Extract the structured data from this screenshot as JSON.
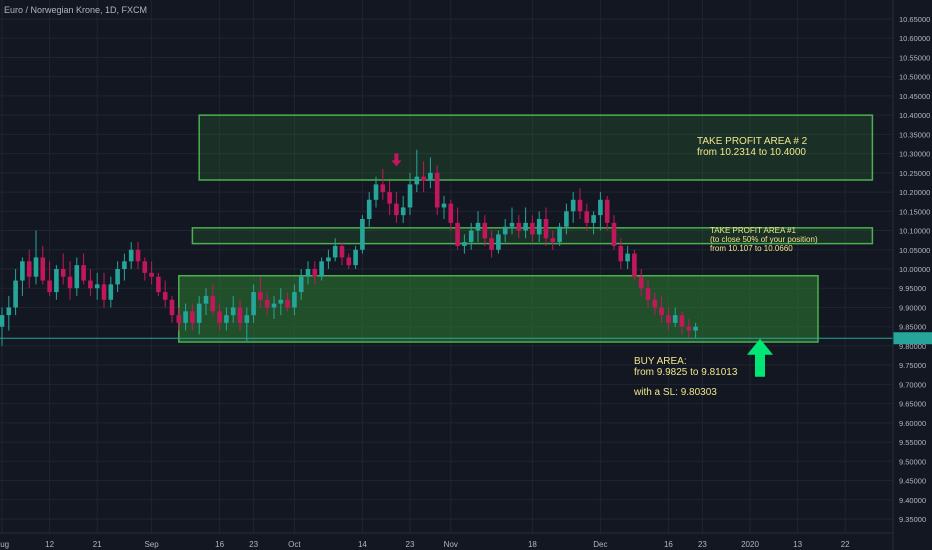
{
  "header": {
    "symbol_title": "Euro / Norwegian Krone, 1D, FXCM"
  },
  "annotations": {
    "tp2": {
      "line1": "TAKE PROFIT AREA # 2",
      "line2": "from 10.2314 to 10.4000"
    },
    "tp1": {
      "line1": "TAKE PROFIT AREA #1",
      "line2": "(to close 50% of your position)",
      "line3": "from 10.107 to 10.0660"
    },
    "buy": {
      "line1": "BUY AREA:",
      "line2": "from 9.9825 to 9.81013",
      "line3": "with a SL: 9.80303"
    }
  },
  "colors": {
    "background": "#131722",
    "up": "#26a69a",
    "down": "#c2185b",
    "zone_fill": "#2e7d32",
    "zone_border": "#4caf50",
    "annotation_text": "#f0e68c",
    "arrow_up": "#00e676",
    "arrow_down": "#c2185b",
    "price_line": "#26a69a"
  },
  "chart_data": {
    "type": "candlestick",
    "title": "Euro / Norwegian Krone, 1D, FXCM",
    "y_axis": {
      "min": 9.3,
      "max": 10.67,
      "ticks": [
        10.65,
        10.6,
        10.55,
        10.5,
        10.45,
        10.4,
        10.35,
        10.3,
        10.25,
        10.2,
        10.15,
        10.1,
        10.05,
        10.0,
        9.95,
        9.9,
        9.85,
        9.8,
        9.75,
        9.7,
        9.65,
        9.6,
        9.55,
        9.5,
        9.45,
        9.4,
        9.35
      ],
      "tick_labels": [
        "10.65000",
        "10.60000",
        "10.55000",
        "10.50000",
        "10.45000",
        "10.40000",
        "10.35000",
        "10.30000",
        "10.25000",
        "10.20000",
        "10.15000",
        "10.10000",
        "10.05000",
        "10.00000",
        "9.95000",
        "9.90000",
        "9.85000",
        "9.80000",
        "9.75000",
        "9.70000",
        "9.65000",
        "9.60000",
        "9.55000",
        "9.50000",
        "9.45000",
        "9.40000",
        "9.35000"
      ]
    },
    "x_axis": {
      "ticks": [
        {
          "label": "Aug",
          "index": 0
        },
        {
          "label": "12",
          "index": 7
        },
        {
          "label": "21",
          "index": 14
        },
        {
          "label": "Sep",
          "index": 22
        },
        {
          "label": "16",
          "index": 32
        },
        {
          "label": "23",
          "index": 37
        },
        {
          "label": "Oct",
          "index": 43
        },
        {
          "label": "14",
          "index": 53
        },
        {
          "label": "23",
          "index": 60
        },
        {
          "label": "Nov",
          "index": 66
        },
        {
          "label": "18",
          "index": 78
        },
        {
          "label": "Dec",
          "index": 88
        },
        {
          "label": "16",
          "index": 98
        },
        {
          "label": "23",
          "index": 103
        },
        {
          "label": "2020",
          "index": 110
        },
        {
          "label": "13",
          "index": 117
        },
        {
          "label": "22",
          "index": 124
        }
      ]
    },
    "last_price": 9.82,
    "zones": [
      {
        "name": "TAKE PROFIT AREA # 2",
        "from_index": 29,
        "to_index": 128,
        "low": 10.2314,
        "high": 10.4
      },
      {
        "name": "TAKE PROFIT AREA #1",
        "from_index": 28,
        "to_index": 128,
        "low": 10.066,
        "high": 10.107
      },
      {
        "name": "BUY AREA",
        "from_index": 26,
        "to_index": 120,
        "low": 9.81013,
        "high": 9.9825
      }
    ],
    "candles": [
      {
        "o": 9.85,
        "h": 9.9,
        "l": 9.8,
        "c": 9.88
      },
      {
        "o": 9.88,
        "h": 9.93,
        "l": 9.84,
        "c": 9.9
      },
      {
        "o": 9.9,
        "h": 10.0,
        "l": 9.88,
        "c": 9.97
      },
      {
        "o": 9.97,
        "h": 10.03,
        "l": 9.93,
        "c": 10.02
      },
      {
        "o": 10.02,
        "h": 10.05,
        "l": 9.95,
        "c": 9.98
      },
      {
        "o": 9.98,
        "h": 10.1,
        "l": 9.96,
        "c": 10.03
      },
      {
        "o": 10.03,
        "h": 10.06,
        "l": 9.96,
        "c": 9.97
      },
      {
        "o": 9.97,
        "h": 10.02,
        "l": 9.93,
        "c": 9.94
      },
      {
        "o": 9.94,
        "h": 10.01,
        "l": 9.92,
        "c": 10.0
      },
      {
        "o": 10.0,
        "h": 10.04,
        "l": 9.96,
        "c": 9.98
      },
      {
        "o": 9.98,
        "h": 10.02,
        "l": 9.92,
        "c": 9.95
      },
      {
        "o": 9.95,
        "h": 10.03,
        "l": 9.93,
        "c": 10.01
      },
      {
        "o": 10.01,
        "h": 10.04,
        "l": 9.96,
        "c": 9.97
      },
      {
        "o": 9.97,
        "h": 10.0,
        "l": 9.93,
        "c": 9.95
      },
      {
        "o": 9.95,
        "h": 9.99,
        "l": 9.92,
        "c": 9.96
      },
      {
        "o": 9.96,
        "h": 9.99,
        "l": 9.9,
        "c": 9.92
      },
      {
        "o": 9.92,
        "h": 9.98,
        "l": 9.9,
        "c": 9.96
      },
      {
        "o": 9.96,
        "h": 10.02,
        "l": 9.94,
        "c": 10.0
      },
      {
        "o": 10.0,
        "h": 10.04,
        "l": 9.97,
        "c": 10.02
      },
      {
        "o": 10.02,
        "h": 10.07,
        "l": 10.0,
        "c": 10.05
      },
      {
        "o": 10.05,
        "h": 10.07,
        "l": 10.0,
        "c": 10.02
      },
      {
        "o": 10.02,
        "h": 10.03,
        "l": 9.97,
        "c": 9.99
      },
      {
        "o": 9.99,
        "h": 10.02,
        "l": 9.96,
        "c": 9.98
      },
      {
        "o": 9.98,
        "h": 9.99,
        "l": 9.93,
        "c": 9.94
      },
      {
        "o": 9.94,
        "h": 9.97,
        "l": 9.9,
        "c": 9.92
      },
      {
        "o": 9.92,
        "h": 9.93,
        "l": 9.86,
        "c": 9.88
      },
      {
        "o": 9.88,
        "h": 9.9,
        "l": 9.84,
        "c": 9.86
      },
      {
        "o": 9.86,
        "h": 9.91,
        "l": 9.84,
        "c": 9.89
      },
      {
        "o": 9.89,
        "h": 9.91,
        "l": 9.84,
        "c": 9.86
      },
      {
        "o": 9.86,
        "h": 9.93,
        "l": 9.83,
        "c": 9.91
      },
      {
        "o": 9.91,
        "h": 9.95,
        "l": 9.88,
        "c": 9.93
      },
      {
        "o": 9.93,
        "h": 9.96,
        "l": 9.88,
        "c": 9.89
      },
      {
        "o": 9.89,
        "h": 9.91,
        "l": 9.84,
        "c": 9.86
      },
      {
        "o": 9.86,
        "h": 9.9,
        "l": 9.84,
        "c": 9.88
      },
      {
        "o": 9.88,
        "h": 9.93,
        "l": 9.86,
        "c": 9.9
      },
      {
        "o": 9.9,
        "h": 9.92,
        "l": 9.84,
        "c": 9.86
      },
      {
        "o": 9.86,
        "h": 9.9,
        "l": 9.81,
        "c": 9.88
      },
      {
        "o": 9.88,
        "h": 9.96,
        "l": 9.86,
        "c": 9.94
      },
      {
        "o": 9.94,
        "h": 9.98,
        "l": 9.9,
        "c": 9.92
      },
      {
        "o": 9.92,
        "h": 9.94,
        "l": 9.88,
        "c": 9.9
      },
      {
        "o": 9.9,
        "h": 9.93,
        "l": 9.87,
        "c": 9.91
      },
      {
        "o": 9.91,
        "h": 9.95,
        "l": 9.88,
        "c": 9.92
      },
      {
        "o": 9.92,
        "h": 9.94,
        "l": 9.89,
        "c": 9.9
      },
      {
        "o": 9.9,
        "h": 9.96,
        "l": 9.88,
        "c": 9.94
      },
      {
        "o": 9.94,
        "h": 10.0,
        "l": 9.92,
        "c": 9.98
      },
      {
        "o": 9.98,
        "h": 10.02,
        "l": 9.96,
        "c": 10.0
      },
      {
        "o": 10.0,
        "h": 10.02,
        "l": 9.96,
        "c": 9.98
      },
      {
        "o": 9.98,
        "h": 10.03,
        "l": 9.97,
        "c": 10.02
      },
      {
        "o": 10.02,
        "h": 10.05,
        "l": 10.0,
        "c": 10.03
      },
      {
        "o": 10.03,
        "h": 10.08,
        "l": 10.02,
        "c": 10.06
      },
      {
        "o": 10.06,
        "h": 10.07,
        "l": 10.01,
        "c": 10.03
      },
      {
        "o": 10.03,
        "h": 10.04,
        "l": 10.0,
        "c": 10.01
      },
      {
        "o": 10.01,
        "h": 10.06,
        "l": 10.0,
        "c": 10.05
      },
      {
        "o": 10.05,
        "h": 10.14,
        "l": 10.04,
        "c": 10.13
      },
      {
        "o": 10.13,
        "h": 10.2,
        "l": 10.11,
        "c": 10.18
      },
      {
        "o": 10.18,
        "h": 10.24,
        "l": 10.16,
        "c": 10.22
      },
      {
        "o": 10.22,
        "h": 10.26,
        "l": 10.18,
        "c": 10.2
      },
      {
        "o": 10.2,
        "h": 10.23,
        "l": 10.14,
        "c": 10.17
      },
      {
        "o": 10.17,
        "h": 10.2,
        "l": 10.12,
        "c": 10.14
      },
      {
        "o": 10.14,
        "h": 10.19,
        "l": 10.12,
        "c": 10.16
      },
      {
        "o": 10.16,
        "h": 10.25,
        "l": 10.14,
        "c": 10.22
      },
      {
        "o": 10.22,
        "h": 10.31,
        "l": 10.2,
        "c": 10.24
      },
      {
        "o": 10.24,
        "h": 10.28,
        "l": 10.2,
        "c": 10.23
      },
      {
        "o": 10.23,
        "h": 10.29,
        "l": 10.21,
        "c": 10.25
      },
      {
        "o": 10.25,
        "h": 10.27,
        "l": 10.14,
        "c": 10.16
      },
      {
        "o": 10.16,
        "h": 10.19,
        "l": 10.13,
        "c": 10.17
      },
      {
        "o": 10.17,
        "h": 10.18,
        "l": 10.1,
        "c": 10.12
      },
      {
        "o": 10.12,
        "h": 10.16,
        "l": 10.05,
        "c": 10.06
      },
      {
        "o": 10.06,
        "h": 10.09,
        "l": 10.04,
        "c": 10.07
      },
      {
        "o": 10.07,
        "h": 10.12,
        "l": 10.05,
        "c": 10.1
      },
      {
        "o": 10.1,
        "h": 10.15,
        "l": 10.07,
        "c": 10.12
      },
      {
        "o": 10.12,
        "h": 10.14,
        "l": 10.06,
        "c": 10.08
      },
      {
        "o": 10.08,
        "h": 10.1,
        "l": 10.03,
        "c": 10.05
      },
      {
        "o": 10.05,
        "h": 10.1,
        "l": 10.04,
        "c": 10.09
      },
      {
        "o": 10.09,
        "h": 10.13,
        "l": 10.07,
        "c": 10.11
      },
      {
        "o": 10.11,
        "h": 10.16,
        "l": 10.09,
        "c": 10.12
      },
      {
        "o": 10.12,
        "h": 10.14,
        "l": 10.08,
        "c": 10.1
      },
      {
        "o": 10.1,
        "h": 10.16,
        "l": 10.08,
        "c": 10.12
      },
      {
        "o": 10.12,
        "h": 10.14,
        "l": 10.07,
        "c": 10.09
      },
      {
        "o": 10.09,
        "h": 10.15,
        "l": 10.07,
        "c": 10.13
      },
      {
        "o": 10.13,
        "h": 10.16,
        "l": 10.06,
        "c": 10.08
      },
      {
        "o": 10.08,
        "h": 10.1,
        "l": 10.05,
        "c": 10.07
      },
      {
        "o": 10.07,
        "h": 10.12,
        "l": 10.06,
        "c": 10.11
      },
      {
        "o": 10.11,
        "h": 10.17,
        "l": 10.09,
        "c": 10.15
      },
      {
        "o": 10.15,
        "h": 10.2,
        "l": 10.12,
        "c": 10.18
      },
      {
        "o": 10.18,
        "h": 10.21,
        "l": 10.13,
        "c": 10.15
      },
      {
        "o": 10.15,
        "h": 10.17,
        "l": 10.1,
        "c": 10.12
      },
      {
        "o": 10.12,
        "h": 10.15,
        "l": 10.09,
        "c": 10.14
      },
      {
        "o": 10.14,
        "h": 10.2,
        "l": 10.1,
        "c": 10.18
      },
      {
        "o": 10.18,
        "h": 10.19,
        "l": 10.1,
        "c": 10.12
      },
      {
        "o": 10.12,
        "h": 10.14,
        "l": 10.05,
        "c": 10.06
      },
      {
        "o": 10.06,
        "h": 10.08,
        "l": 10.0,
        "c": 10.02
      },
      {
        "o": 10.02,
        "h": 10.06,
        "l": 10.0,
        "c": 10.04
      },
      {
        "o": 10.04,
        "h": 10.05,
        "l": 9.97,
        "c": 9.98
      },
      {
        "o": 9.98,
        "h": 10.0,
        "l": 9.93,
        "c": 9.95
      },
      {
        "o": 9.95,
        "h": 9.97,
        "l": 9.9,
        "c": 9.92
      },
      {
        "o": 9.92,
        "h": 9.94,
        "l": 9.88,
        "c": 9.9
      },
      {
        "o": 9.9,
        "h": 9.93,
        "l": 9.86,
        "c": 9.88
      },
      {
        "o": 9.88,
        "h": 9.9,
        "l": 9.84,
        "c": 9.86
      },
      {
        "o": 9.86,
        "h": 9.9,
        "l": 9.85,
        "c": 9.88
      },
      {
        "o": 9.88,
        "h": 9.89,
        "l": 9.83,
        "c": 9.85
      },
      {
        "o": 9.85,
        "h": 9.87,
        "l": 9.82,
        "c": 9.84
      },
      {
        "o": 9.84,
        "h": 9.86,
        "l": 9.82,
        "c": 9.85
      }
    ]
  }
}
